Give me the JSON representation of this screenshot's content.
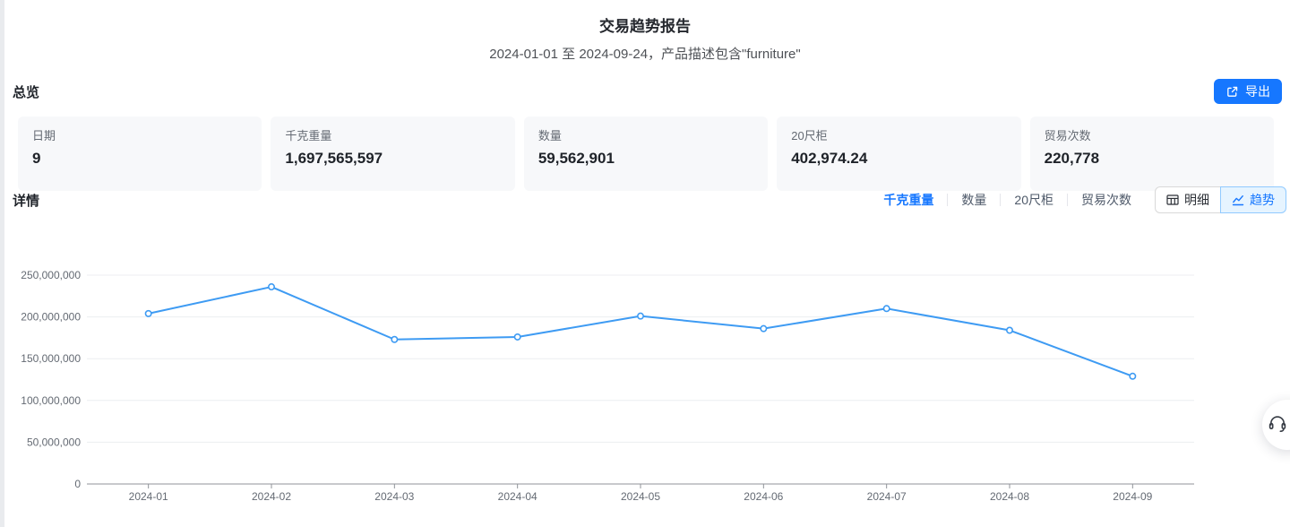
{
  "header": {
    "title": "交易趋势报告",
    "subtitle": "2024-01-01 至 2024-09-24，产品描述包含\"furniture\""
  },
  "overview": {
    "heading": "总览",
    "export_label": "导出",
    "cards": [
      {
        "label": "日期",
        "value": "9"
      },
      {
        "label": "千克重量",
        "value": "1,697,565,597"
      },
      {
        "label": "数量",
        "value": "59,562,901"
      },
      {
        "label": "20尺柜",
        "value": "402,974.24"
      },
      {
        "label": "贸易次数",
        "value": "220,778"
      }
    ]
  },
  "details": {
    "heading": "详情",
    "metric_tabs": [
      {
        "label": "千克重量",
        "active": true
      },
      {
        "label": "数量",
        "active": false
      },
      {
        "label": "20尺柜",
        "active": false
      },
      {
        "label": "贸易次数",
        "active": false
      }
    ],
    "view_toggle": [
      {
        "label": "明细",
        "icon": "table-grid-icon",
        "active": false
      },
      {
        "label": "趋势",
        "icon": "line-chart-icon",
        "active": true
      }
    ]
  },
  "icons": {
    "export": "external-link-icon",
    "detail_view": "table-grid-icon",
    "trend_view": "line-chart-icon",
    "support": "headset-icon"
  },
  "colors": {
    "accent_blue": "#1677ff",
    "active_segment_bg": "#e6f4ff",
    "active_segment_border": "#91caff",
    "card_bg": "#f7f8fa",
    "line_blue": "#3e9bf3",
    "gridline": "#eceef1",
    "axis": "#909399"
  },
  "chart_data": {
    "type": "line",
    "title": "",
    "series_name": "千克重量",
    "categories": [
      "2024-01",
      "2024-02",
      "2024-03",
      "2024-04",
      "2024-05",
      "2024-06",
      "2024-07",
      "2024-08",
      "2024-09"
    ],
    "values": [
      204000000,
      236000000,
      173000000,
      176000000,
      201000000,
      186000000,
      210000000,
      184000000,
      129000000
    ],
    "xlabel": "",
    "ylabel": "",
    "ylim": [
      0,
      250000000
    ],
    "ytick_step": 50000000,
    "grid": true,
    "legend": "none",
    "line_color": "#3e9bf3",
    "marker": "hollow-circle"
  }
}
